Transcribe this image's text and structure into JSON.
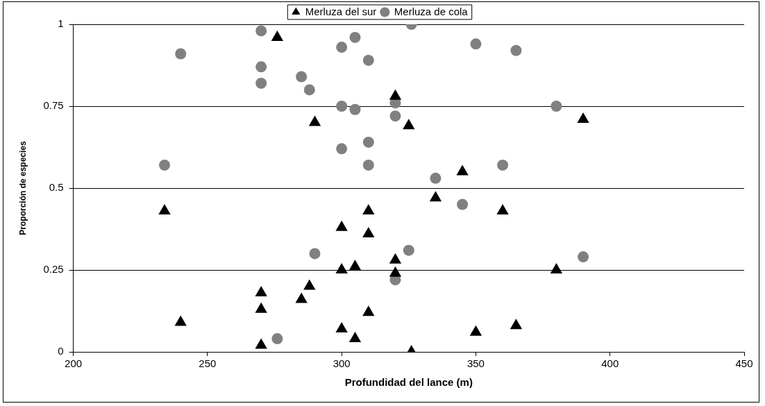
{
  "chart_data": {
    "type": "scatter",
    "xlabel": "Profundidad del lance (m)",
    "ylabel": "Proporción de especies",
    "xlim": [
      200,
      450
    ],
    "xticks": [
      200,
      250,
      300,
      350,
      400,
      450
    ],
    "ylim": [
      0,
      1
    ],
    "yticks": [
      0,
      0.25,
      0.5,
      0.75,
      1
    ],
    "grid": "y",
    "legend": "top",
    "series": [
      {
        "name": "Merluza del sur",
        "color": "#000000",
        "marker": "triangle",
        "x": [
          234,
          240,
          270,
          270,
          270,
          276,
          285,
          288,
          290,
          300,
          300,
          300,
          305,
          305,
          310,
          310,
          310,
          320,
          320,
          320,
          325,
          326,
          335,
          345,
          350,
          360,
          365,
          380,
          390
        ],
        "values": [
          0.43,
          0.09,
          0.18,
          0.13,
          0.02,
          0.96,
          0.16,
          0.2,
          0.7,
          0.38,
          0.25,
          0.07,
          0.26,
          0.04,
          0.43,
          0.36,
          0.12,
          0.78,
          0.28,
          0.24,
          0.69,
          0.0,
          0.47,
          0.55,
          0.06,
          0.43,
          0.08,
          0.25,
          0.71
        ]
      },
      {
        "name": "Merluza de cola",
        "color": "#808080",
        "marker": "circle",
        "x": [
          234,
          240,
          270,
          270,
          270,
          276,
          285,
          288,
          290,
          300,
          300,
          300,
          305,
          305,
          310,
          310,
          310,
          320,
          320,
          320,
          325,
          326,
          335,
          345,
          350,
          360,
          365,
          380,
          390
        ],
        "values": [
          0.57,
          0.91,
          0.98,
          0.87,
          0.82,
          0.04,
          0.84,
          0.8,
          0.3,
          0.93,
          0.75,
          0.62,
          0.96,
          0.74,
          0.89,
          0.64,
          0.57,
          0.76,
          0.72,
          0.22,
          0.31,
          1.0,
          0.53,
          0.45,
          0.94,
          0.57,
          0.92,
          0.75,
          0.29
        ]
      }
    ]
  }
}
